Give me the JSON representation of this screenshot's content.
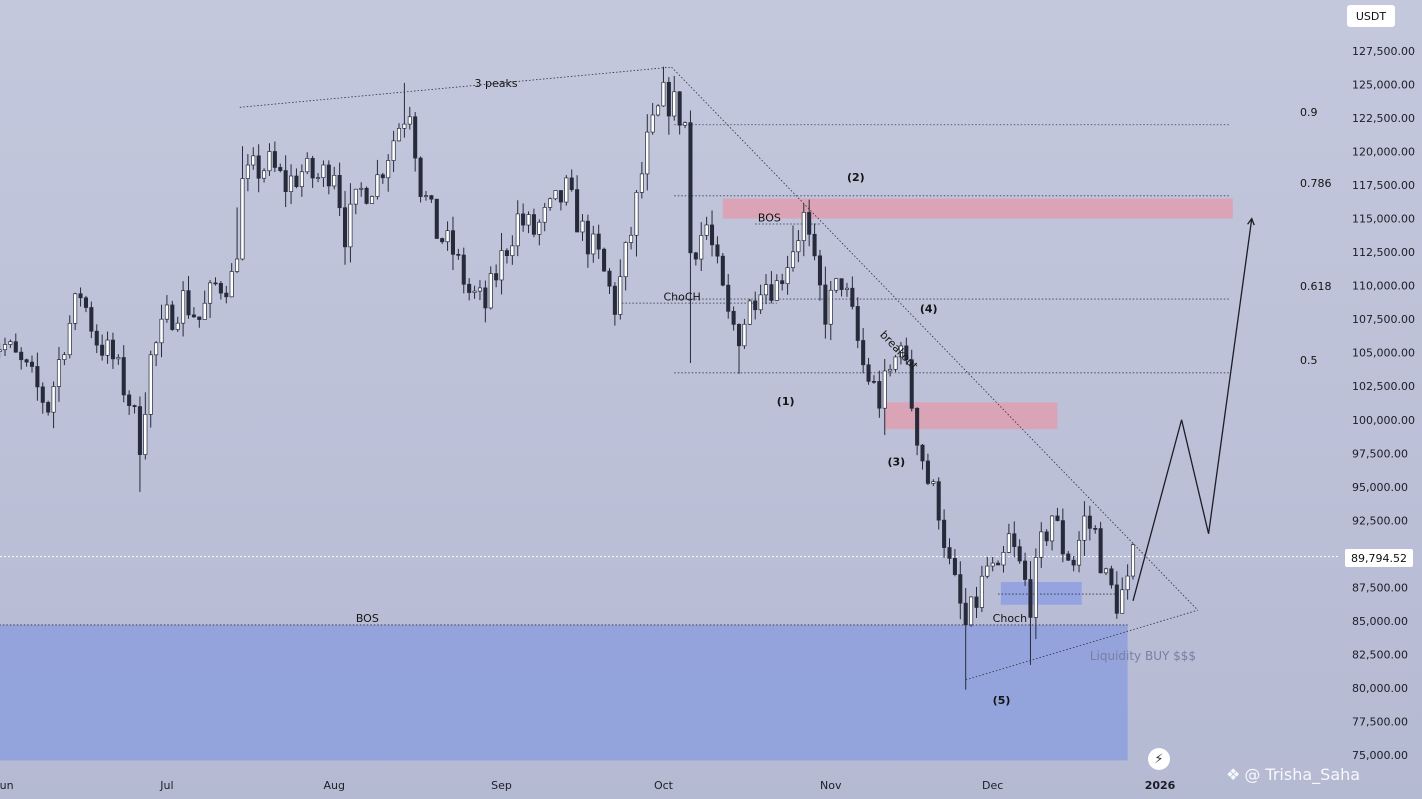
{
  "currency": "USDT",
  "current_price_label": "89,794.52",
  "watermark_handle": "@ Trisha_Saha",
  "watermark_icon": "binance-diamond-icon",
  "colors": {
    "up_candle": "#ffffff",
    "down_candle": "#262b3a",
    "supply_zone": "#e39aaa",
    "demand_zone": "#8e9fe3",
    "liquidity_zone": "#8d9fdd"
  },
  "chart_data": {
    "type": "candlestick",
    "y_axis": {
      "ticks": [
        "75,000.00",
        "77,500.00",
        "80,000.00",
        "82,500.00",
        "85,000.00",
        "87,500.00",
        "90,000.00",
        "92,500.00",
        "95,000.00",
        "97,500.00",
        "100,000.00",
        "102,500.00",
        "105,000.00",
        "107,500.00",
        "110,000.00",
        "112,500.00",
        "115,000.00",
        "117,500.00",
        "120,000.00",
        "122,500.00",
        "125,000.00",
        "127,500.00"
      ],
      "range": [
        74500,
        130000
      ]
    },
    "x_axis": {
      "labels": [
        "Jun",
        "Jul",
        "Aug",
        "Sep",
        "Oct",
        "Nov",
        "Dec",
        "2026"
      ],
      "label_days": [
        0,
        30,
        61,
        92,
        122,
        153,
        183,
        214
      ],
      "range_days": [
        -3,
        225
      ]
    },
    "current_price": 89794.52,
    "anchor_points": [
      [
        -3,
        106000
      ],
      [
        0,
        105500
      ],
      [
        4,
        103500
      ],
      [
        8,
        101000
      ],
      [
        11,
        106000
      ],
      [
        14,
        109500
      ],
      [
        17,
        106000
      ],
      [
        20,
        104500
      ],
      [
        23,
        101500
      ],
      [
        25,
        98500
      ],
      [
        27,
        104500
      ],
      [
        30,
        107500
      ],
      [
        33,
        109000
      ],
      [
        36,
        107500
      ],
      [
        39,
        110000
      ],
      [
        42,
        110500
      ],
      [
        43,
        113000
      ],
      [
        44,
        117500
      ],
      [
        46,
        118500
      ],
      [
        49,
        119000
      ],
      [
        52,
        117500
      ],
      [
        55,
        118500
      ],
      [
        58,
        118000
      ],
      [
        61,
        119000
      ],
      [
        63,
        114000
      ],
      [
        66,
        117000
      ],
      [
        69,
        118000
      ],
      [
        73,
        122000
      ],
      [
        75,
        123500
      ],
      [
        77,
        117500
      ],
      [
        80,
        114000
      ],
      [
        83,
        112500
      ],
      [
        86,
        109500
      ],
      [
        89,
        108500
      ],
      [
        92,
        112000
      ],
      [
        95,
        115000
      ],
      [
        98,
        114000
      ],
      [
        101,
        115500
      ],
      [
        104,
        117000
      ],
      [
        107,
        114000
      ],
      [
        110,
        112000
      ],
      [
        113,
        108500
      ],
      [
        116,
        114000
      ],
      [
        119,
        120500
      ],
      [
        122,
        124000
      ],
      [
        124,
        123500
      ],
      [
        126,
        122000
      ],
      [
        127,
        112500
      ],
      [
        130,
        114500
      ],
      [
        134,
        107500
      ],
      [
        136,
        106500
      ],
      [
        140,
        110500
      ],
      [
        143,
        110000
      ],
      [
        146,
        113000
      ],
      [
        148,
        115000
      ],
      [
        150,
        111000
      ],
      [
        152,
        108000
      ],
      [
        155,
        110500
      ],
      [
        157,
        107500
      ],
      [
        159,
        104000
      ],
      [
        162,
        101500
      ],
      [
        165,
        104500
      ],
      [
        166,
        106500
      ],
      [
        167,
        103500
      ],
      [
        169,
        99000
      ],
      [
        171,
        95500
      ],
      [
        173,
        93500
      ],
      [
        175,
        89000
      ],
      [
        177,
        86000
      ],
      [
        178,
        84500
      ],
      [
        180,
        86500
      ],
      [
        182,
        89000
      ],
      [
        184,
        88000
      ],
      [
        186,
        91000
      ],
      [
        188,
        89000
      ],
      [
        190,
        86500
      ],
      [
        192,
        90500
      ],
      [
        194,
        93000
      ],
      [
        196,
        90500
      ],
      [
        198,
        89500
      ],
      [
        200,
        92500
      ],
      [
        202,
        91500
      ],
      [
        204,
        88000
      ],
      [
        206,
        86500
      ],
      [
        208,
        87500
      ],
      [
        209,
        89500
      ]
    ],
    "zones": [
      {
        "kind": "supply",
        "x": [
          133,
          227.5
        ],
        "y": [
          115000,
          116500
        ]
      },
      {
        "kind": "supply",
        "x": [
          163,
          195
        ],
        "y": [
          99300,
          101300
        ]
      },
      {
        "kind": "demand",
        "x": [
          184.5,
          199.5
        ],
        "y": [
          86200,
          87900
        ]
      },
      {
        "kind": "liquidity",
        "x": [
          -3,
          208
        ],
        "y": [
          74600,
          84700
        ]
      }
    ],
    "fib_levels": [
      {
        "label": "0.9",
        "price": 122000
      },
      {
        "label": "0.786",
        "price": 116700
      },
      {
        "label": "0.618",
        "price": 109000
      },
      {
        "label": "0.5",
        "price": 103500
      }
    ],
    "annotations": {
      "peaks_label": "3 peaks",
      "breakout": "breakout",
      "bos_upper": "BOS",
      "bos_lower": "BOS",
      "choch_upper": "ChoCH",
      "choch_lower": "Choch",
      "wave_1": "(1)",
      "wave_2": "(2)",
      "wave_3": "(3)",
      "wave_4": "(4)",
      "wave_5": "(5)",
      "liquidity": "Liquidity BUY $$$"
    },
    "projection_path": [
      [
        209,
        86500
      ],
      [
        218,
        100000
      ],
      [
        223,
        91500
      ],
      [
        231,
        115000
      ]
    ]
  }
}
